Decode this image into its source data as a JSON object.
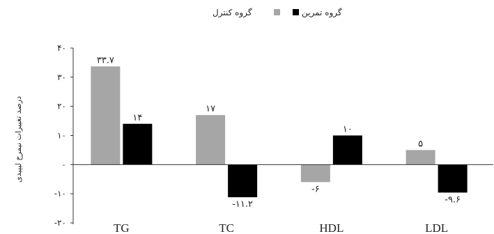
{
  "chart_data": {
    "type": "bar",
    "title": "",
    "xlabel": "",
    "ylabel": "درصد تغییرات نیمرخ لیپیدی",
    "categories": [
      "TG",
      "TC",
      "HDL",
      "LDL"
    ],
    "series": [
      {
        "name": "گروه کنترل",
        "color": "#a6a6a6",
        "values": [
          33.7,
          17,
          -6,
          5
        ],
        "labels": [
          "۳۳.۷",
          "۱۷",
          "-۶",
          "۵"
        ]
      },
      {
        "name": "گروه تمرین",
        "color": "#000000",
        "values": [
          14,
          -11.2,
          10,
          -9.6
        ],
        "labels": [
          "۱۴",
          "-۱۱.۲",
          "۱۰",
          "-۹.۶"
        ]
      }
    ],
    "ylim": [
      -20,
      40
    ],
    "yticks": [
      40,
      30,
      20,
      10,
      0,
      -10,
      -20
    ],
    "ytick_labels": [
      "۴۰",
      "۳۰",
      "۲۰",
      "۱۰",
      "۰",
      "-۱۰",
      "-۲۰"
    ],
    "grid": false,
    "legend_position": "top-center"
  }
}
